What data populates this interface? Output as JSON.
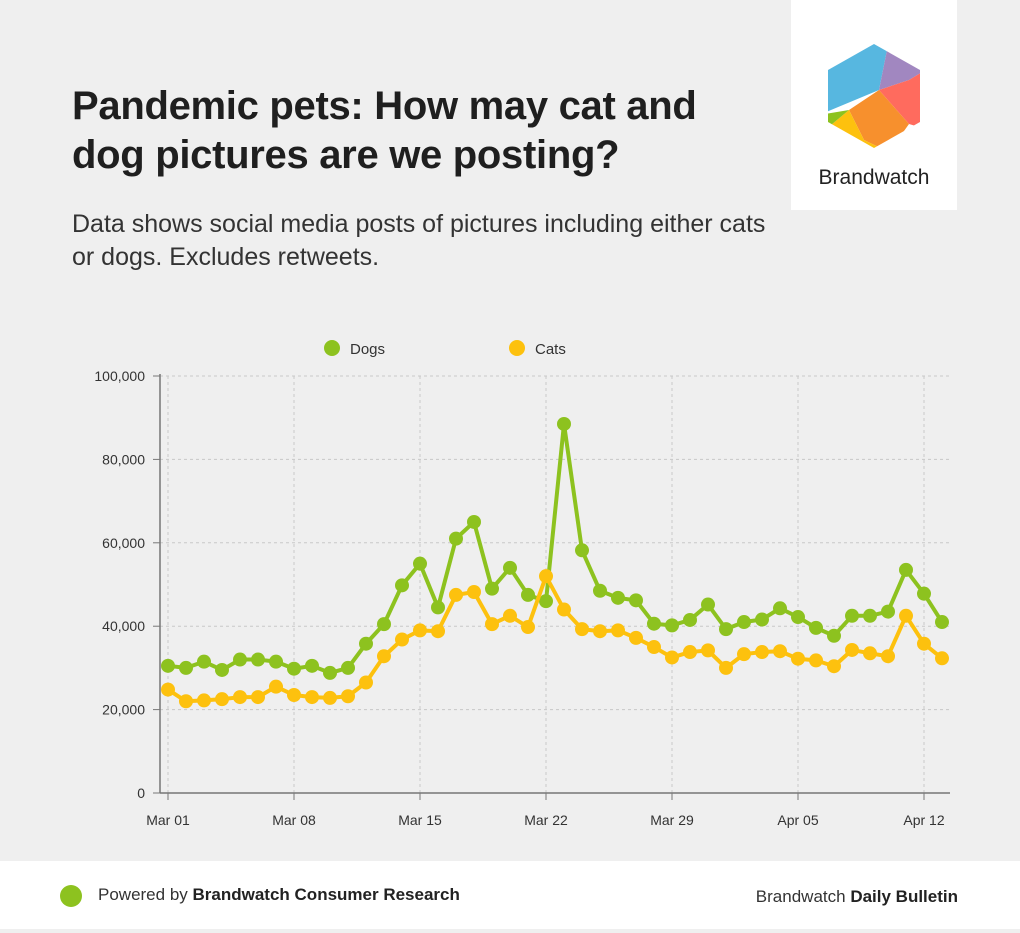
{
  "header": {
    "title": "Pandemic pets: How may cat and dog pictures are we posting?",
    "subtitle": "Data shows social media posts of pictures including either cats or dogs. Excludes retweets."
  },
  "logo": {
    "name": "Brandwatch",
    "colors": [
      "#57b7e0",
      "#a187c0",
      "#ff6b5e",
      "#f7902d",
      "#fdc10e",
      "#8dc21f"
    ]
  },
  "footer": {
    "powered_prefix": "Powered by",
    "powered_name": "Brandwatch Consumer Research",
    "brand_prefix": "Brandwatch",
    "brand_name": "Daily Bulletin",
    "dot_color": "#8dc21f"
  },
  "chart_data": {
    "type": "line",
    "x_labels": [
      "Mar 01",
      "Mar 08",
      "Mar 15",
      "Mar 22",
      "Mar 29",
      "Apr 05",
      "Apr 12"
    ],
    "x_label_day_index": [
      0,
      7,
      14,
      21,
      28,
      35,
      42
    ],
    "x_start": "Mar 01",
    "x_end": "Apr 13",
    "ylim": [
      0,
      100000
    ],
    "y_ticks": [
      "0",
      "20,000",
      "40,000",
      "60,000",
      "80,000",
      "100,000"
    ],
    "y_tick_values": [
      0,
      20000,
      40000,
      60000,
      80000,
      100000
    ],
    "grid": true,
    "legend_position": "top",
    "series": [
      {
        "name": "Dogs",
        "color": "#8dc21f",
        "values": [
          30500,
          30000,
          31500,
          29500,
          32000,
          32000,
          31500,
          29800,
          30500,
          28800,
          30000,
          35800,
          40500,
          49800,
          55000,
          44500,
          61000,
          65000,
          49000,
          54000,
          47500,
          46000,
          88500,
          58200,
          48500,
          46800,
          46200,
          40600,
          40200,
          41500,
          45200,
          39300,
          41000,
          41600,
          44300,
          42200,
          39600,
          37700,
          42500,
          42500,
          43500,
          53500,
          47800,
          41000
        ]
      },
      {
        "name": "Cats",
        "color": "#fdc10e",
        "values": [
          24800,
          22000,
          22200,
          22500,
          23000,
          23000,
          25500,
          23500,
          23000,
          22800,
          23200,
          26500,
          32800,
          36800,
          39000,
          38800,
          47500,
          48200,
          40500,
          42500,
          39800,
          52000,
          44000,
          39300,
          38800,
          39000,
          37200,
          35000,
          32500,
          33800,
          34200,
          30000,
          33300,
          33800,
          34000,
          32200,
          31800,
          30400,
          34300,
          33500,
          32800,
          42500,
          35800,
          32300
        ]
      }
    ]
  }
}
